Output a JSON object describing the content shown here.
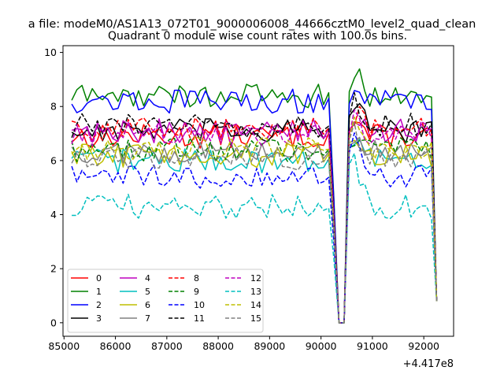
{
  "figure": {
    "suptitle": "a file: modeM0/AS1A13_072T01_9000006008_44666cztM0_level2_quad_clean",
    "title": "Quadrant 0 module wise count rates with 100.0s bins.",
    "x_offset_label": "+4.417e8"
  },
  "chart_data": {
    "type": "line",
    "title": "Quadrant 0 module wise count rates with 100.0s bins.",
    "xlabel": "",
    "ylabel": "",
    "x_offset": 441700000,
    "xlim": [
      84980,
      92580
    ],
    "ylim": [
      -0.5,
      10.25
    ],
    "xticks": [
      85000,
      86000,
      87000,
      88000,
      89000,
      90000,
      91000,
      92000
    ],
    "xtick_labels": [
      "85000",
      "86000",
      "87000",
      "88000",
      "89000",
      "90000",
      "91000",
      "92000"
    ],
    "yticks": [
      0,
      2,
      4,
      6,
      8,
      10
    ],
    "ytick_labels": [
      "0",
      "2",
      "4",
      "6",
      "8",
      "10"
    ],
    "legend": "lower-left",
    "x_first": 85150,
    "x_step": 100,
    "n_points": 72,
    "gap_x": [
      90350,
      90450
    ],
    "series": [
      {
        "name": "0",
        "color": "#ff0000",
        "dash": "solid",
        "level": 6.9,
        "peak": 7.8,
        "end": 0.8
      },
      {
        "name": "1",
        "color": "#008000",
        "dash": "solid",
        "level": 8.4,
        "peak": 9.5,
        "end": 0.8
      },
      {
        "name": "2",
        "color": "#0000ff",
        "dash": "solid",
        "level": 8.2,
        "peak": 9.0,
        "end": 0.8
      },
      {
        "name": "3",
        "color": "#000000",
        "dash": "solid",
        "level": 7.1,
        "peak": 8.5,
        "end": 0.8
      },
      {
        "name": "4",
        "color": "#bf00bf",
        "dash": "solid",
        "level": 7.1,
        "peak": 7.9,
        "end": 0.8
      },
      {
        "name": "5",
        "color": "#00bfbf",
        "dash": "solid",
        "level": 6.0,
        "peak": 7.2,
        "end": 0.8
      },
      {
        "name": "6",
        "color": "#bfbf00",
        "dash": "solid",
        "level": 6.2,
        "peak": 7.4,
        "end": 0.8
      },
      {
        "name": "7",
        "color": "#808080",
        "dash": "solid",
        "level": 6.3,
        "peak": 7.3,
        "end": 0.8
      },
      {
        "name": "8",
        "color": "#ff0000",
        "dash": "dashed",
        "level": 7.2,
        "peak": 7.9,
        "end": 0.8
      },
      {
        "name": "9",
        "color": "#008000",
        "dash": "dashed",
        "level": 6.4,
        "peak": 7.2,
        "end": 0.8
      },
      {
        "name": "10",
        "color": "#0000ff",
        "dash": "dashed",
        "level": 5.4,
        "peak": 7.0,
        "end": 0.8
      },
      {
        "name": "11",
        "color": "#000000",
        "dash": "dashed",
        "level": 7.3,
        "peak": 8.4,
        "end": 0.8
      },
      {
        "name": "12",
        "color": "#bf00bf",
        "dash": "dashed",
        "level": 7.0,
        "peak": 7.7,
        "end": 0.8
      },
      {
        "name": "13",
        "color": "#00bfbf",
        "dash": "dashed",
        "level": 4.3,
        "peak": 6.5,
        "end": 0.8
      },
      {
        "name": "14",
        "color": "#bfbf00",
        "dash": "dashed",
        "level": 6.5,
        "peak": 7.6,
        "end": 0.8
      },
      {
        "name": "15",
        "color": "#808080",
        "dash": "dashed",
        "level": 6.1,
        "peak": 7.5,
        "end": 0.8
      }
    ]
  }
}
